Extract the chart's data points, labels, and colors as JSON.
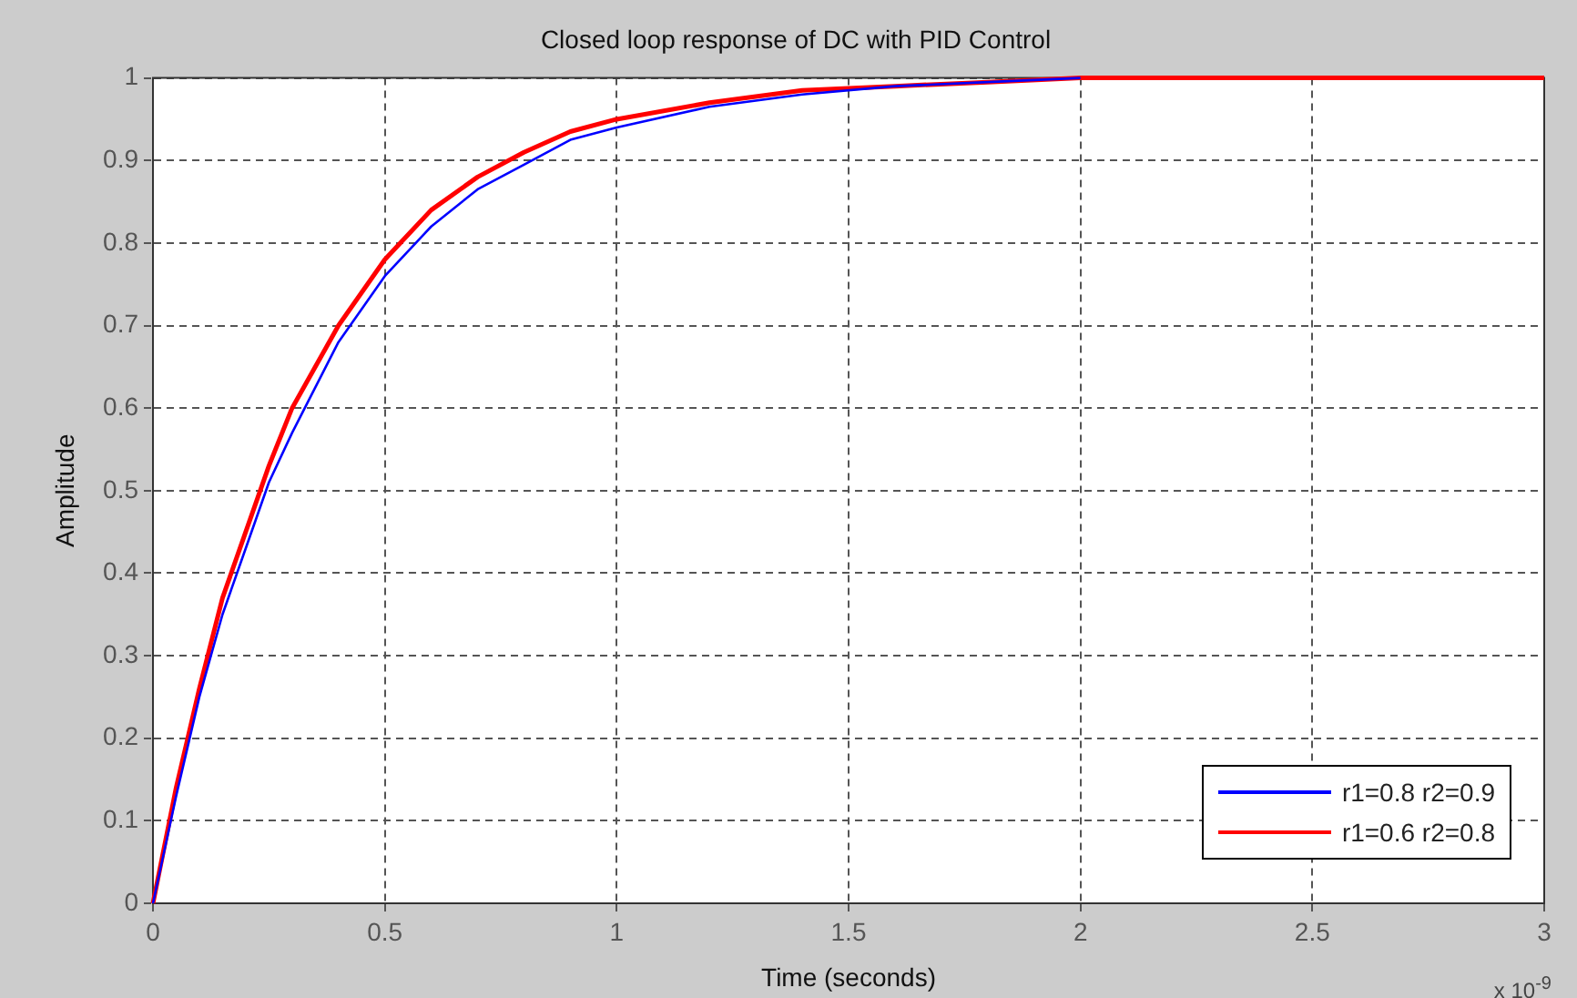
{
  "chart_data": {
    "type": "line",
    "title": "Closed loop response of DC with PID Control",
    "xlabel": "Time (seconds)",
    "ylabel": "Amplitude",
    "annotations": [
      "x 10$^{-9}$"
    ],
    "xlim": [
      0,
      3
    ],
    "xticks": [
      0,
      0.5,
      1,
      1.5,
      2,
      2.5,
      3
    ],
    "ylim": [
      0,
      1
    ],
    "yticks": [
      0,
      0.1,
      0.2,
      0.3,
      0.4,
      0.5,
      0.6,
      0.7,
      0.8,
      0.9,
      1
    ],
    "grid": true,
    "legend": "bottom right",
    "marker": "none",
    "line_style": "solid",
    "series": [
      {
        "name": "r1=0.8 r2=0.9",
        "color": "#0000ff",
        "x": [
          0,
          0.05,
          0.1,
          0.15,
          0.2,
          0.25,
          0.3,
          0.4,
          0.5,
          0.6,
          0.7,
          0.8,
          0.9,
          1,
          1.2,
          1.4,
          1.6,
          1.8,
          2
        ],
        "values": [
          0,
          0.13,
          0.25,
          0.35,
          0.43,
          0.51,
          0.57,
          0.68,
          0.76,
          0.82,
          0.865,
          0.895,
          0.925,
          0.94,
          0.965,
          0.98,
          0.99,
          0.995,
          1
        ]
      },
      {
        "name": "r1=0.6 r2=0.8",
        "color": "#ff0000",
        "x": [
          0,
          0.05,
          0.1,
          0.15,
          0.2,
          0.25,
          0.3,
          0.4,
          0.5,
          0.6,
          0.7,
          0.8,
          0.9,
          1,
          1.2,
          1.4,
          1.6,
          1.8,
          2,
          3
        ],
        "values": [
          0,
          0.14,
          0.26,
          0.37,
          0.45,
          0.53,
          0.6,
          0.7,
          0.78,
          0.84,
          0.88,
          0.91,
          0.935,
          0.95,
          0.97,
          0.985,
          0.99,
          0.995,
          1,
          1
        ]
      }
    ]
  }
}
